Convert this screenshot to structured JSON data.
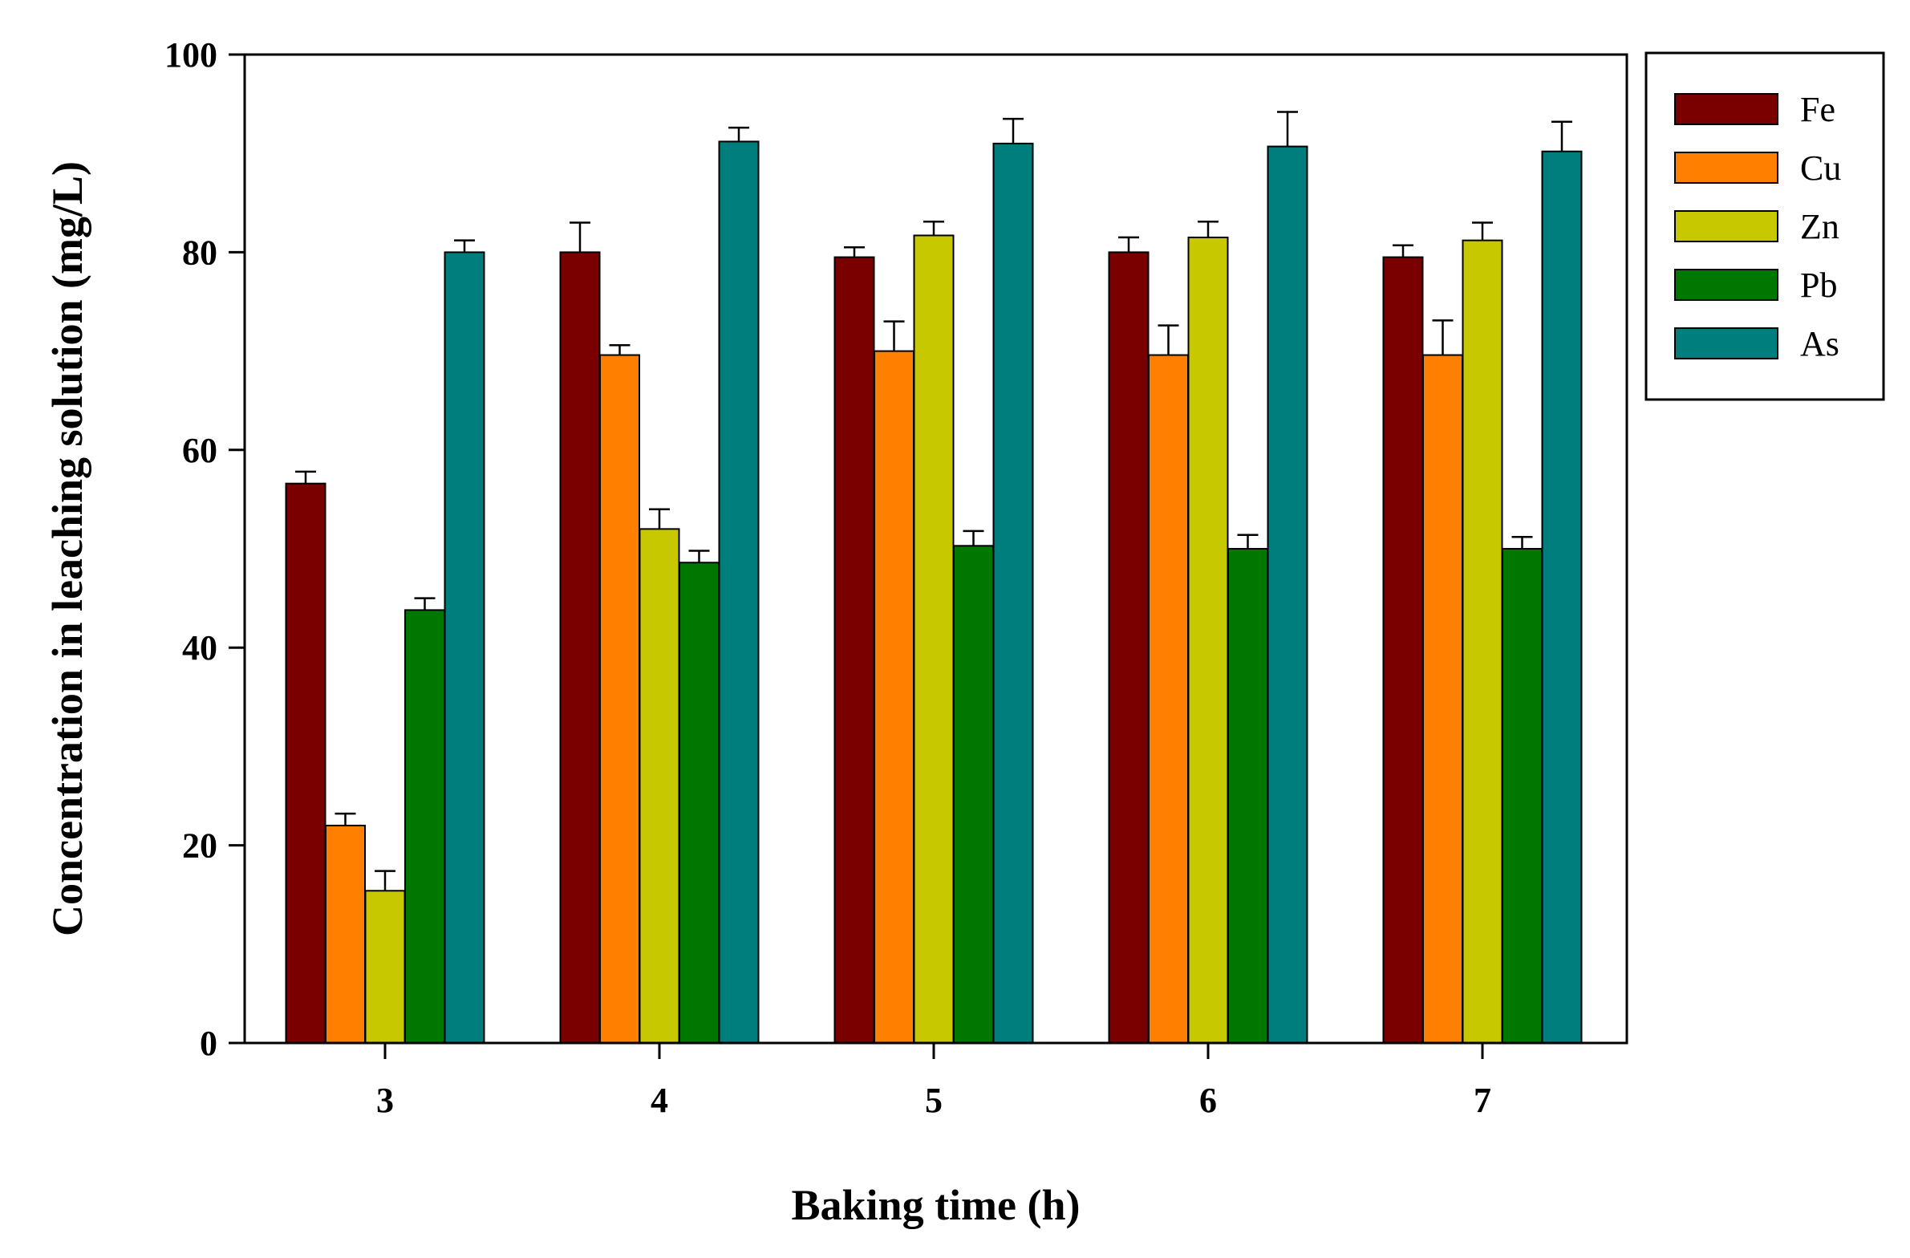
{
  "chart_data": {
    "type": "bar",
    "title": "",
    "xlabel": "Baking time (h)",
    "ylabel": "Concentration in leaching solution (mg/L)",
    "categories": [
      "3",
      "4",
      "5",
      "6",
      "7"
    ],
    "ylim": [
      0,
      100
    ],
    "yticks": [
      0,
      20,
      40,
      60,
      80,
      100
    ],
    "grid": false,
    "legend_position": "outside-top-right",
    "error_bars": true,
    "series": [
      {
        "name": "Fe",
        "color": "#7a0000",
        "values": [
          56.6,
          80.0,
          79.5,
          80.0,
          79.5
        ],
        "errors": [
          1.2,
          3.0,
          1.0,
          1.5,
          1.2
        ]
      },
      {
        "name": "Cu",
        "color": "#ff8000",
        "values": [
          22.0,
          69.6,
          70.0,
          69.6,
          69.6
        ],
        "errors": [
          1.2,
          1.0,
          3.0,
          3.0,
          3.5
        ]
      },
      {
        "name": "Zn",
        "color": "#c8c800",
        "values": [
          15.4,
          52.0,
          81.7,
          81.5,
          81.2
        ],
        "errors": [
          2.0,
          2.0,
          1.4,
          1.6,
          1.8
        ]
      },
      {
        "name": "Pb",
        "color": "#007800",
        "values": [
          43.8,
          48.6,
          50.3,
          50.0,
          50.0
        ],
        "errors": [
          1.2,
          1.2,
          1.5,
          1.4,
          1.2
        ]
      },
      {
        "name": "As",
        "color": "#007d7d",
        "values": [
          80.0,
          91.2,
          91.0,
          90.7,
          90.2
        ],
        "errors": [
          1.2,
          1.4,
          2.5,
          3.5,
          3.0
        ]
      }
    ]
  }
}
